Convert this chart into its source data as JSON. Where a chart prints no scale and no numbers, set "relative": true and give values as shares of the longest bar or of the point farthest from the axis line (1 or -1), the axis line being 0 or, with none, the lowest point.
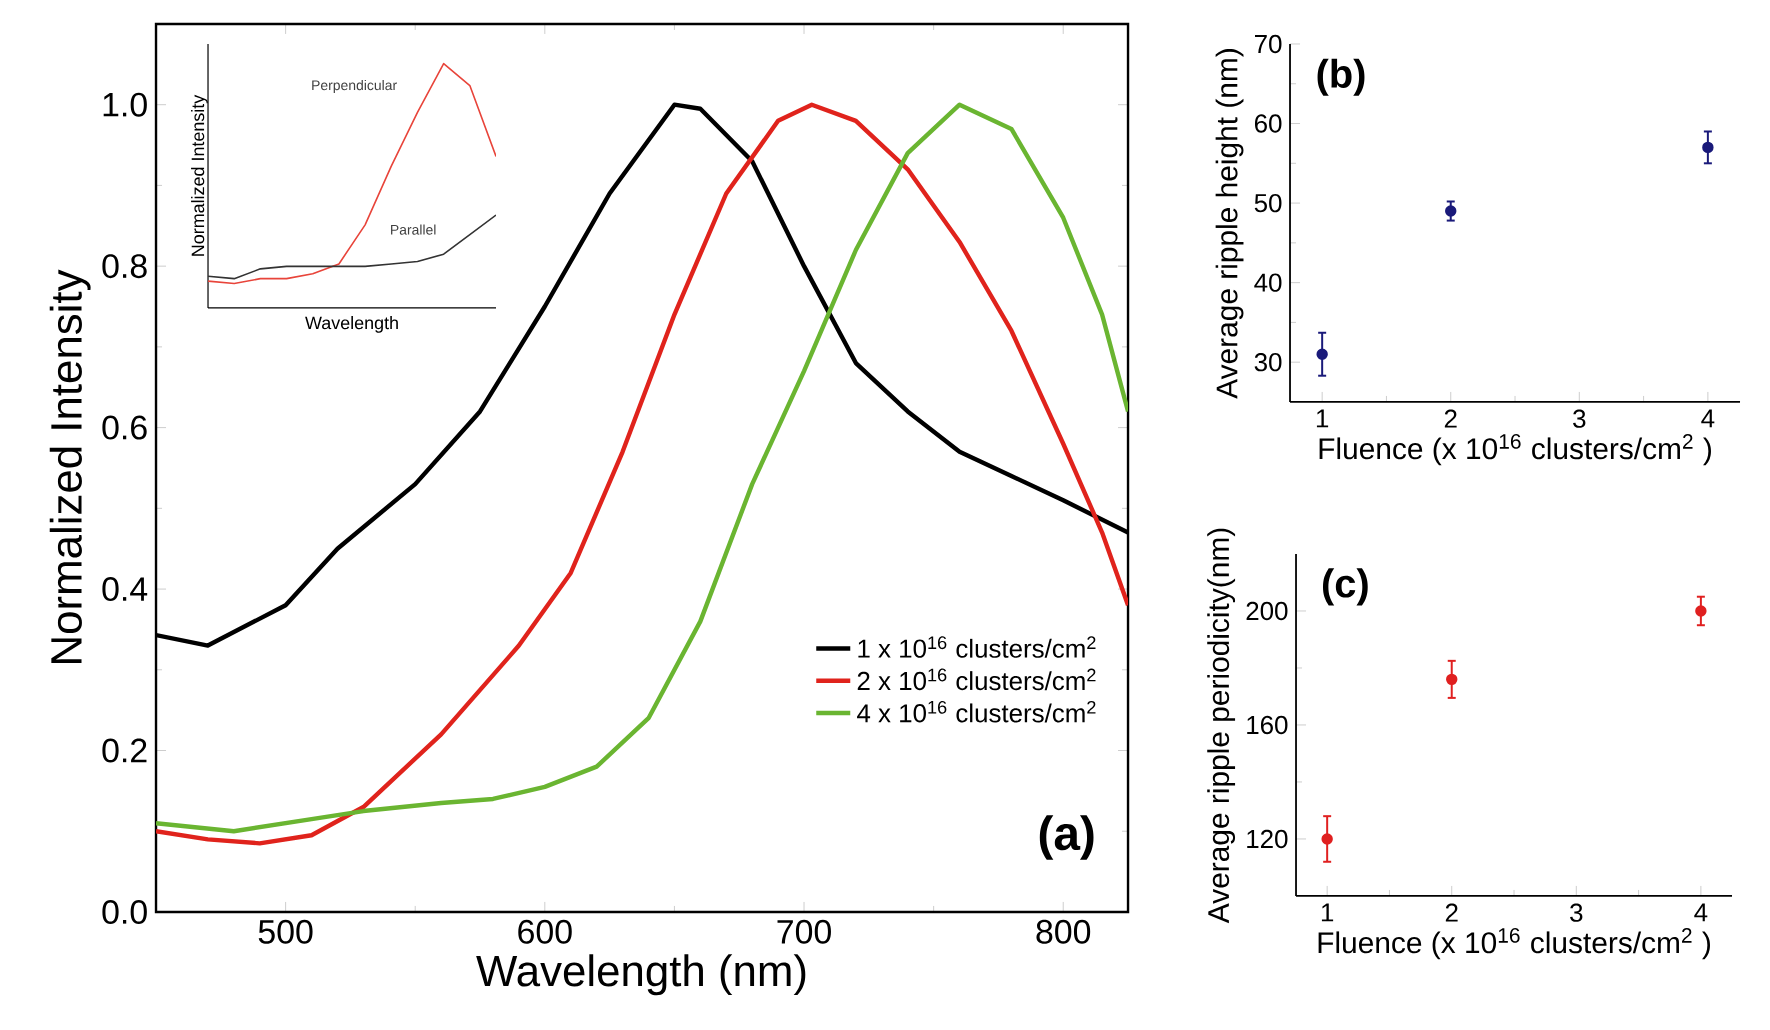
{
  "chart_data": [
    {
      "type": "line",
      "xlabel": "Wavelength (nm)",
      "ylabel": "Normalized Intensity",
      "xlim": [
        450,
        825
      ],
      "ylim": [
        0,
        1.1
      ],
      "xticks": [
        500,
        600,
        700,
        800
      ],
      "yticks": [
        {
          "value": 0,
          "label": "0.0"
        },
        0.2,
        0.4,
        0.6,
        0.8,
        {
          "value": 1,
          "label": "1.0"
        }
      ],
      "legend": "bottom right",
      "annotations": [
        "(a)"
      ],
      "series": [
        {
          "name": "1 x 10$^{16}$ clusters/cm$^{2}$",
          "color": "#000000",
          "x": [
            450,
            470,
            500,
            520,
            550,
            575,
            600,
            625,
            650,
            660,
            680,
            700,
            720,
            740,
            760,
            780,
            800,
            825
          ],
          "values": [
            0.343,
            0.33,
            0.38,
            0.45,
            0.53,
            0.62,
            0.75,
            0.89,
            1.0,
            0.995,
            0.93,
            0.8,
            0.68,
            0.62,
            0.57,
            0.54,
            0.51,
            0.47
          ]
        },
        {
          "name": "2 x 10$^{16}$ clusters/cm$^{2}$",
          "color": "#e0231c",
          "x": [
            450,
            470,
            490,
            510,
            530,
            560,
            590,
            610,
            630,
            650,
            670,
            690,
            703,
            720,
            740,
            760,
            780,
            800,
            815,
            825
          ],
          "values": [
            0.1,
            0.09,
            0.085,
            0.095,
            0.13,
            0.22,
            0.33,
            0.42,
            0.57,
            0.74,
            0.89,
            0.98,
            1.0,
            0.98,
            0.92,
            0.83,
            0.72,
            0.58,
            0.47,
            0.38
          ]
        },
        {
          "name": "4 x 10$^{16}$ clusters/cm$^{2}$",
          "color": "#6ab531",
          "x": [
            450,
            480,
            510,
            530,
            560,
            580,
            600,
            620,
            640,
            660,
            680,
            700,
            720,
            740,
            760,
            780,
            800,
            815,
            825
          ],
          "values": [
            0.11,
            0.1,
            0.115,
            0.125,
            0.135,
            0.14,
            0.155,
            0.18,
            0.24,
            0.36,
            0.53,
            0.67,
            0.82,
            0.94,
            1.0,
            0.97,
            0.86,
            0.74,
            0.62
          ]
        }
      ]
    },
    {
      "type": "line",
      "relative": true,
      "xlabel": "Wavelength",
      "ylabel": "Normalized Intensity",
      "categories": [
        null,
        null,
        null,
        null,
        null,
        null,
        null,
        null,
        null,
        null,
        null,
        null
      ],
      "series": [
        {
          "name": "Perpendicular",
          "color": "#e8443a",
          "values": [
            0.11,
            0.1,
            0.12,
            0.12,
            0.14,
            0.18,
            0.34,
            0.58,
            0.8,
            1.0,
            0.91,
            0.62
          ]
        },
        {
          "name": "Parallel",
          "color": "#333333",
          "values": [
            0.13,
            0.12,
            0.16,
            0.17,
            0.17,
            0.17,
            0.17,
            0.18,
            0.19,
            0.22,
            0.3,
            0.38
          ]
        }
      ]
    },
    {
      "type": "scatter",
      "xlabel": "Fluence (x 10$^{16}$ clusters/cm$^{2}$ )",
      "ylabel": "Average ripple height (nm)",
      "xlim": [
        0.75,
        4.25
      ],
      "ylim": [
        25,
        70
      ],
      "xticks": [
        1,
        2,
        3,
        4
      ],
      "yticks": [
        30,
        40,
        50,
        60,
        70
      ],
      "marker": "circle",
      "annotations": [
        "(b)"
      ],
      "series": [
        {
          "color": "#1a1a7a",
          "x": [
            1,
            2,
            4
          ],
          "values": [
            31,
            49,
            57
          ],
          "errors": [
            2.7,
            1.2,
            2
          ]
        }
      ]
    },
    {
      "type": "scatter",
      "xlabel": "Fluence (x 10$^{16}$ clusters/cm$^{2}$ )",
      "ylabel": "Average ripple periodicity(nm)",
      "xlim": [
        0.75,
        4.25
      ],
      "ylim": [
        100,
        220
      ],
      "xticks": [
        1,
        2,
        3,
        4
      ],
      "yticks": [
        120,
        160,
        200
      ],
      "marker": "circle",
      "annotations": [
        "(c)"
      ],
      "series": [
        {
          "color": "#e02020",
          "x": [
            1,
            2,
            4
          ],
          "values": [
            120,
            176,
            200
          ],
          "errors": [
            8,
            6.5,
            5
          ]
        }
      ]
    }
  ]
}
